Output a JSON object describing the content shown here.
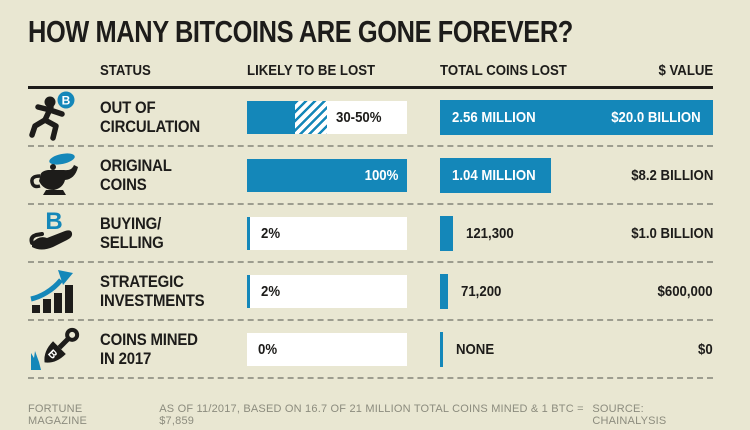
{
  "title": "HOW MANY BITCOINS ARE GONE FOREVER?",
  "colors": {
    "background": "#e9e7d2",
    "accent_blue": "#1487b9",
    "ink": "#1d1c1a",
    "footer_gray": "#8c8c7e",
    "bar_background": "#ffffff"
  },
  "chart_data": {
    "type": "table",
    "title": "HOW MANY BITCOINS ARE GONE FOREVER?",
    "columns": [
      "STATUS",
      "LIKELY TO BE LOST",
      "TOTAL COINS LOST",
      "$ VALUE"
    ],
    "max_coins": 2560000,
    "pct_axis_max": 100,
    "rows": [
      {
        "status_line1": "OUT OF",
        "status_line2": "CIRCULATION",
        "icon": "runner-bitcoin-icon",
        "likely_lost_label": "30-50%",
        "pct_solid": 30,
        "pct_hatch": 20,
        "coins_label": "2.56 MILLION",
        "coins": 2560000,
        "value_label": "$20.0 BILLION"
      },
      {
        "status_line1": "ORIGINAL",
        "status_line2": "COINS",
        "icon": "genie-lamp-icon",
        "likely_lost_label": "100%",
        "pct_solid": 100,
        "pct_hatch": 0,
        "coins_label": "1.04 MILLION",
        "coins": 1040000,
        "value_label": "$8.2 BILLION"
      },
      {
        "status_line1": "BUYING/",
        "status_line2": "SELLING",
        "icon": "hand-bitcoin-icon",
        "likely_lost_label": "2%",
        "pct_solid": 2,
        "pct_hatch": 0,
        "coins_label": "121,300",
        "coins": 121300,
        "value_label": "$1.0 BILLION"
      },
      {
        "status_line1": "STRATEGIC",
        "status_line2": "INVESTMENTS",
        "icon": "growth-chart-arrow-icon",
        "likely_lost_label": "2%",
        "pct_solid": 2,
        "pct_hatch": 0,
        "coins_label": "71,200",
        "coins": 71200,
        "value_label": "$600,000"
      },
      {
        "status_line1": "COINS MINED",
        "status_line2": "IN 2017",
        "icon": "shovel-bitcoin-icon",
        "likely_lost_label": "0%",
        "pct_solid": 0,
        "pct_hatch": 0,
        "coins_label": "NONE",
        "coins": 0,
        "value_label": "$0"
      }
    ]
  },
  "footer": {
    "left": "FORTUNE MAGAZINE",
    "center": "AS OF 11/2017, BASED ON 16.7 OF 21 MILLION TOTAL COINS MINED & 1 BTC = $7,859",
    "right": "SOURCE: CHAINALYSIS"
  }
}
